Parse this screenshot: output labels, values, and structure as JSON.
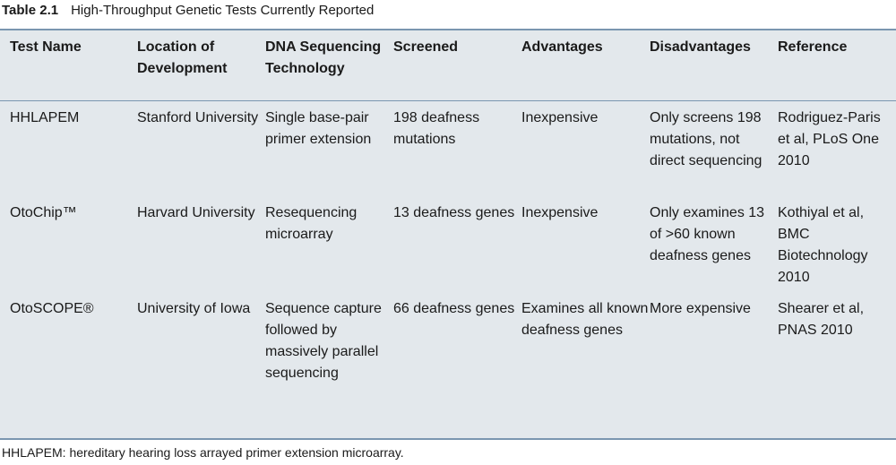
{
  "caption": {
    "label": "Table 2.1",
    "title": "High-Throughput Genetic Tests Currently Reported"
  },
  "headers": [
    "Test Name",
    "Location of Development",
    "DNA Sequencing Technology",
    "Screened",
    "Advantages",
    "Disadvantages",
    "Reference"
  ],
  "rows": [
    {
      "test_name": "HHLAPEM",
      "location": "Stanford University",
      "technology": "Single base-pair primer extension",
      "screened": "198 deafness mutations",
      "advantages": "Inexpensive",
      "disadvantages": "Only screens 198 mutations, not direct sequencing",
      "reference": "Rodriguez-Paris et al, PLoS One 2010"
    },
    {
      "test_name": "OtoChip™",
      "location": "Harvard University",
      "technology": "Resequencing microarray",
      "screened": "13 deafness genes",
      "advantages": "Inexpensive",
      "disadvantages": "Only examines 13 of >60 known deafness genes",
      "reference": "Kothiyal et al, BMC Biotechnology 2010"
    },
    {
      "test_name": "OtoSCOPE®",
      "location": "University of Iowa",
      "technology": "Sequence capture followed by massively parallel sequencing",
      "screened": "66 deafness genes",
      "advantages": "Examines all known deafness genes",
      "disadvantages": "More expensive",
      "reference": "Shearer et al, PNAS 2010"
    }
  ],
  "footnote": "HHLAPEM: hereditary hearing loss arrayed primer extension microarray."
}
